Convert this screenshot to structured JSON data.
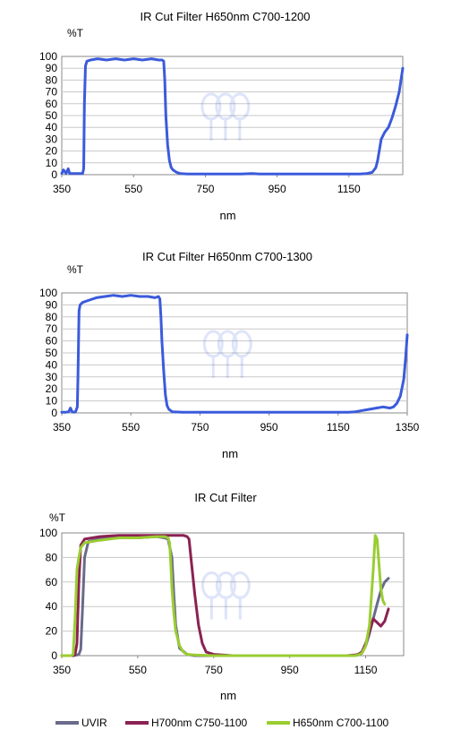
{
  "chart_data": [
    {
      "type": "line",
      "title": "IR Cut Filter H650nm C700-1200",
      "xlabel": "nm",
      "ylabel": "%T",
      "xlim": [
        350,
        1300
      ],
      "ylim": [
        0,
        100
      ],
      "xticks": [
        350,
        550,
        750,
        950,
        1150
      ],
      "yticks": [
        0,
        10,
        20,
        30,
        40,
        50,
        60,
        70,
        80,
        90,
        100
      ],
      "grid": true,
      "legend": "none",
      "series": [
        {
          "color": "#3b5bdb",
          "x": [
            350,
            355,
            362,
            365,
            368,
            372,
            376,
            380,
            385,
            392,
            400,
            408,
            411,
            413,
            416,
            420,
            430,
            450,
            475,
            500,
            525,
            550,
            575,
            600,
            620,
            630,
            634,
            637,
            640,
            645,
            650,
            655,
            660,
            670,
            680,
            700,
            750,
            800,
            850,
            880,
            900,
            950,
            1000,
            1050,
            1100,
            1150,
            1180,
            1200,
            1215,
            1225,
            1230,
            1240,
            1250,
            1260,
            1270,
            1280,
            1290,
            1295,
            1300
          ],
          "y": [
            1,
            4,
            1,
            3,
            5,
            1,
            1,
            1,
            1,
            1,
            1,
            1,
            5,
            60,
            92,
            96,
            97,
            98,
            97,
            98,
            97,
            98,
            97,
            98,
            97,
            97,
            96,
            80,
            50,
            25,
            12,
            6,
            4,
            2,
            1,
            0.5,
            0.5,
            0.5,
            0.5,
            1,
            0.5,
            0.5,
            0.5,
            0.5,
            0.5,
            0.5,
            0.5,
            1,
            2,
            6,
            12,
            30,
            36,
            40,
            48,
            58,
            70,
            80,
            90
          ]
        }
      ]
    },
    {
      "type": "line",
      "title": "IR Cut Filter H650nm C700-1300",
      "xlabel": "nm",
      "ylabel": "%T",
      "xlim": [
        350,
        1350
      ],
      "ylim": [
        0,
        100
      ],
      "xticks": [
        350,
        550,
        750,
        950,
        1150,
        1350
      ],
      "yticks": [
        0,
        10,
        20,
        30,
        40,
        50,
        60,
        70,
        80,
        90,
        100
      ],
      "grid": true,
      "legend": "none",
      "series": [
        {
          "color": "#3b5bdb",
          "x": [
            350,
            360,
            370,
            375,
            380,
            385,
            390,
            395,
            397,
            400,
            403,
            410,
            430,
            450,
            475,
            500,
            525,
            550,
            575,
            600,
            620,
            630,
            634,
            637,
            640,
            645,
            650,
            655,
            660,
            670,
            700,
            750,
            800,
            850,
            900,
            950,
            1000,
            1050,
            1100,
            1150,
            1180,
            1200,
            1220,
            1240,
            1260,
            1280,
            1300,
            1310,
            1320,
            1330,
            1340,
            1345,
            1350
          ],
          "y": [
            0.5,
            0.5,
            1,
            4,
            1,
            0.5,
            1,
            5,
            30,
            85,
            90,
            92,
            94,
            96,
            97,
            98,
            97,
            98,
            97,
            97,
            96,
            97,
            95,
            80,
            60,
            35,
            15,
            6,
            3,
            1,
            0.5,
            0.5,
            0.5,
            0.5,
            0.5,
            0.5,
            0.5,
            0.5,
            0.5,
            0.5,
            0.5,
            1,
            2,
            3,
            4,
            5,
            4,
            5,
            8,
            14,
            28,
            45,
            65
          ]
        }
      ]
    },
    {
      "type": "line",
      "title": "IR Cut Filter",
      "xlabel": "nm",
      "ylabel": "%T",
      "xlim": [
        350,
        1250
      ],
      "ylim": [
        0,
        100
      ],
      "xticks": [
        350,
        550,
        750,
        950,
        1150
      ],
      "yticks": [
        0,
        20,
        40,
        60,
        80,
        100
      ],
      "grid": true,
      "legend": "bottom",
      "series": [
        {
          "name": "UVIR",
          "color": "#6a6a8a",
          "x": [
            350,
            380,
            390,
            395,
            400,
            405,
            410,
            420,
            450,
            500,
            550,
            600,
            620,
            630,
            640,
            645,
            650,
            660,
            680,
            700,
            800,
            900,
            1000,
            1050,
            1100,
            1120,
            1130,
            1140,
            1150,
            1160,
            1170,
            1180,
            1190,
            1200,
            1210
          ],
          "y": [
            0,
            0,
            0.5,
            1,
            5,
            40,
            80,
            93,
            95,
            96,
            96,
            97,
            96,
            95,
            80,
            50,
            25,
            6,
            1,
            0,
            0,
            0,
            0,
            0,
            0,
            0,
            0.5,
            2,
            8,
            18,
            30,
            42,
            53,
            60,
            63
          ]
        },
        {
          "name": "H700nm  C750-1100",
          "color": "#8b2252",
          "x": [
            350,
            380,
            385,
            390,
            395,
            400,
            410,
            450,
            500,
            550,
            600,
            650,
            670,
            680,
            685,
            690,
            700,
            710,
            720,
            730,
            750,
            800,
            900,
            1000,
            1050,
            1100,
            1120,
            1130,
            1140,
            1150,
            1160,
            1170,
            1180,
            1190,
            1200,
            1210
          ],
          "y": [
            0,
            0,
            1,
            10,
            60,
            90,
            95,
            97,
            98,
            98,
            98,
            98,
            98,
            97,
            95,
            80,
            50,
            25,
            10,
            3,
            1,
            0,
            0,
            0,
            0,
            0,
            0.5,
            1,
            3,
            10,
            20,
            30,
            27,
            24,
            28,
            38
          ]
        },
        {
          "name": "H650nm  C700-1100",
          "color": "#9acd32",
          "x": [
            350,
            375,
            380,
            385,
            390,
            395,
            400,
            410,
            450,
            500,
            550,
            600,
            620,
            630,
            634,
            637,
            640,
            645,
            650,
            660,
            670,
            680,
            700,
            750,
            800,
            900,
            1000,
            1050,
            1100,
            1120,
            1130,
            1140,
            1150,
            1160,
            1170,
            1175,
            1180,
            1185,
            1190,
            1195,
            1200
          ],
          "y": [
            0,
            0,
            1,
            30,
            70,
            80,
            88,
            92,
            94,
            96,
            96,
            97,
            97,
            96,
            92,
            75,
            55,
            35,
            20,
            8,
            3,
            1,
            0.5,
            0,
            0,
            0,
            0,
            0,
            0,
            0,
            0.5,
            2,
            8,
            25,
            70,
            98,
            95,
            75,
            55,
            45,
            42
          ]
        }
      ]
    }
  ]
}
